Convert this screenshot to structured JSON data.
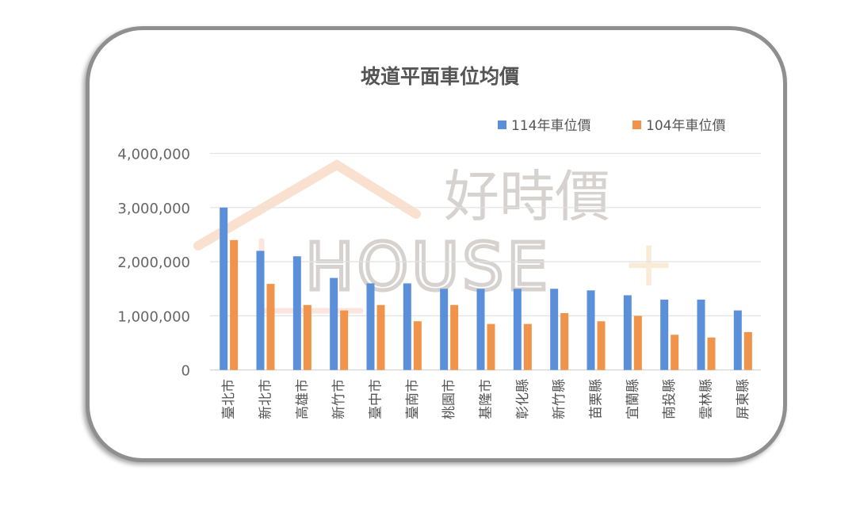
{
  "chart_data": {
    "type": "bar",
    "title": "坡道平面車位均價",
    "xlabel": "",
    "ylabel": "",
    "ylim": [
      0,
      4000000
    ],
    "yticks": [
      0,
      1000000,
      2000000,
      3000000,
      4000000
    ],
    "ytick_labels": [
      "0",
      "1,000,000",
      "2,000,000",
      "3,000,000",
      "4,000,000"
    ],
    "grid": true,
    "legend_position": "top-right",
    "categories": [
      "臺北市",
      "新北市",
      "高雄市",
      "新竹市",
      "臺中市",
      "臺南市",
      "桃園市",
      "基隆市",
      "彰化縣",
      "新竹縣",
      "苗栗縣",
      "宜蘭縣",
      "南投縣",
      "雲林縣",
      "屏東縣"
    ],
    "series": [
      {
        "name": "114年車位價",
        "color": "#5b8fd9",
        "values": [
          3000000,
          2200000,
          2100000,
          1700000,
          1600000,
          1600000,
          1500000,
          1500000,
          1500000,
          1500000,
          1470000,
          1380000,
          1300000,
          1300000,
          1100000
        ]
      },
      {
        "name": "104年車位價",
        "color": "#f0934b",
        "values": [
          2400000,
          1590000,
          1200000,
          1100000,
          1200000,
          900000,
          1200000,
          850000,
          850000,
          1050000,
          900000,
          1000000,
          650000,
          600000,
          700000
        ]
      }
    ]
  },
  "watermark": {
    "chinese": "好時價",
    "latin": "HOUSE",
    "plus": "+"
  }
}
